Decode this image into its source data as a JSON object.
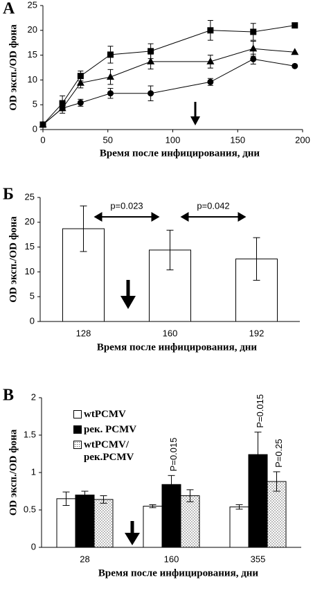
{
  "chart_data": [
    {
      "type": "line",
      "panel_label": "А",
      "ylabel": "OD эксп./OD фона",
      "xlabel": "Время после инфицирования, дни",
      "x": [
        0,
        15,
        29,
        52,
        83,
        129,
        162,
        194
      ],
      "xlim": [
        0,
        200
      ],
      "xticks": [
        0,
        50,
        100,
        150,
        200
      ],
      "ylim": [
        0,
        25
      ],
      "yticks": [
        0,
        5,
        10,
        15,
        20,
        25
      ],
      "series": [
        {
          "marker": "square",
          "color": "#000000",
          "values": [
            1.0,
            5.3,
            10.8,
            15.1,
            15.8,
            20.0,
            19.7,
            21.0
          ],
          "errors": [
            0.5,
            1.5,
            1.0,
            1.7,
            1.5,
            2.0,
            1.7,
            0
          ]
        },
        {
          "marker": "triangle",
          "color": "#000000",
          "values": [
            1.0,
            4.3,
            9.4,
            10.6,
            13.7,
            13.7,
            16.3,
            15.6
          ],
          "errors": [
            0.5,
            1.0,
            1.0,
            1.5,
            1.5,
            1.3,
            1.5,
            0
          ]
        },
        {
          "marker": "circle",
          "color": "#000000",
          "values": [
            1.0,
            4.3,
            5.4,
            7.3,
            7.3,
            9.6,
            14.2,
            12.8
          ],
          "errors": [
            0.3,
            0.5,
            0.7,
            1.0,
            1.5,
            0.7,
            1.0,
            0
          ]
        }
      ]
    },
    {
      "type": "bar",
      "panel_label": "Б",
      "ylabel": "OD эксп./OD фона",
      "xlabel": "Время после инфицирования, дни",
      "categories": [
        "128",
        "160",
        "192"
      ],
      "values": [
        18.7,
        14.4,
        12.6
      ],
      "errors": [
        4.6,
        4.0,
        4.3
      ],
      "color": "#ffffff",
      "ylim": [
        0,
        25
      ],
      "yticks": [
        0,
        5,
        10,
        15,
        20,
        25
      ],
      "comparisons": [
        {
          "label": "p=0.023",
          "between": [
            "128",
            "160"
          ]
        },
        {
          "label": "p=0.042",
          "between": [
            "160",
            "192"
          ]
        }
      ]
    },
    {
      "type": "bar",
      "panel_label": "В",
      "ylabel": "OD эксп./OD фона",
      "xlabel": "Время после инфицирования, дни",
      "categories": [
        "28",
        "160",
        "355"
      ],
      "ylim": [
        0,
        2
      ],
      "yticks": [
        0,
        0.5,
        1,
        1.5,
        2
      ],
      "series": [
        {
          "name": "wtPCMV",
          "color": "#ffffff",
          "values": [
            0.65,
            0.55,
            0.54
          ],
          "errors": [
            0.09,
            0.02,
            0.03
          ]
        },
        {
          "name": "рек. PCMV",
          "color": "#000000",
          "values": [
            0.7,
            0.84,
            1.24
          ],
          "errors": [
            0.05,
            0.12,
            0.3
          ],
          "annotations": [
            null,
            "P=0.015",
            "P=0.015"
          ]
        },
        {
          "name": "wtPCMV/ рек.PCMV",
          "color": "#ffffff",
          "pattern": "dots",
          "values": [
            0.64,
            0.69,
            0.88
          ],
          "errors": [
            0.05,
            0.08,
            0.13
          ],
          "annotations": [
            null,
            null,
            "P=0.25"
          ]
        }
      ]
    }
  ]
}
